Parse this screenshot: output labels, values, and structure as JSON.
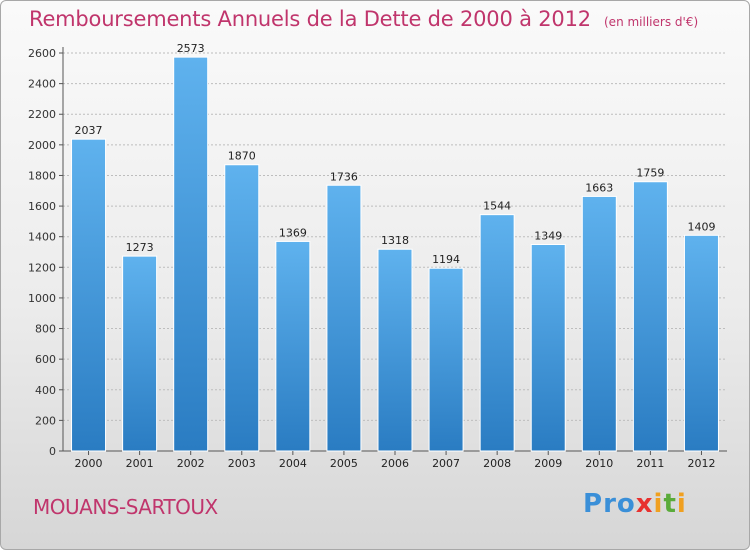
{
  "title": "Remboursements Annuels de la Dette de 2000 à 2012",
  "subtitle": "(en milliers d'€)",
  "town": "MOUANS-SARTOUX",
  "logo": {
    "text": "Proxiti",
    "letters": [
      {
        "ch": "P",
        "color": "#3a8fd8"
      },
      {
        "ch": "r",
        "color": "#3a8fd8"
      },
      {
        "ch": "o",
        "color": "#3a8fd8"
      },
      {
        "ch": "x",
        "color": "#e8312f"
      },
      {
        "ch": "i",
        "color": "#f0a020"
      },
      {
        "ch": "t",
        "color": "#5aab3a"
      },
      {
        "ch": "i",
        "color": "#f0a020"
      }
    ]
  },
  "colors": {
    "bar_top": "#5fb2ee",
    "bar_bottom": "#2a7cc2",
    "title": "#c0356c",
    "grid": "#bdbdbd"
  },
  "chart_data": {
    "type": "bar",
    "categories": [
      "2000",
      "2001",
      "2002",
      "2003",
      "2004",
      "2005",
      "2006",
      "2007",
      "2008",
      "2009",
      "2010",
      "2011",
      "2012"
    ],
    "values": [
      2037,
      1273,
      2573,
      1870,
      1369,
      1736,
      1318,
      1194,
      1544,
      1349,
      1663,
      1759,
      1409
    ],
    "title": "Remboursements Annuels de la Dette de 2000 à 2012",
    "subtitle": "(en milliers d'€)",
    "xlabel": "",
    "ylabel": "",
    "ylim": [
      0,
      2600
    ],
    "yticks": [
      0,
      200,
      400,
      600,
      800,
      1000,
      1200,
      1400,
      1600,
      1800,
      2000,
      2200,
      2400,
      2600
    ],
    "grid": true,
    "data_labels": true
  }
}
